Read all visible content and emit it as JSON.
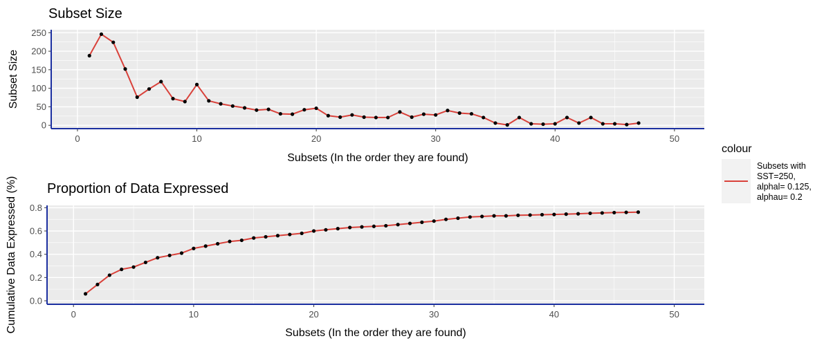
{
  "chart_data": [
    {
      "type": "line",
      "title": "Subset Size",
      "xlabel": "Subsets (In the order they are found)",
      "ylabel": "Subset Size",
      "xlim": [
        -2.2,
        52.5
      ],
      "ylim": [
        -9,
        258
      ],
      "x_ticks": [
        0,
        10,
        20,
        30,
        40,
        50
      ],
      "y_ticks": [
        0,
        50,
        100,
        150,
        200,
        250
      ],
      "grid": true,
      "series": [
        {
          "name": "Subsets with SST=250, alphal= 0.125, alphau= 0.2",
          "color": "#d9413a",
          "x": [
            1,
            2,
            3,
            4,
            5,
            6,
            7,
            8,
            9,
            10,
            11,
            12,
            13,
            14,
            15,
            16,
            17,
            18,
            19,
            20,
            21,
            22,
            23,
            24,
            25,
            26,
            27,
            28,
            29,
            30,
            31,
            32,
            33,
            34,
            35,
            36,
            37,
            38,
            39,
            40,
            41,
            42,
            43,
            44,
            45,
            46,
            47
          ],
          "values": [
            188,
            246,
            224,
            152,
            76,
            98,
            118,
            72,
            64,
            110,
            66,
            58,
            52,
            47,
            41,
            43,
            31,
            30,
            42,
            46,
            26,
            22,
            28,
            22,
            21,
            21,
            36,
            22,
            30,
            28,
            40,
            33,
            31,
            21,
            6,
            1,
            21,
            4,
            3,
            4,
            21,
            6,
            21,
            4,
            4,
            2,
            6
          ]
        }
      ]
    },
    {
      "type": "line",
      "title": "Proportion of Data Expressed",
      "xlabel": "Subsets (In the order they are found)",
      "ylabel": "Cumulative Data Expressed (%)",
      "xlim": [
        -2.2,
        52.5
      ],
      "ylim": [
        -0.03,
        0.82
      ],
      "x_ticks": [
        0,
        10,
        20,
        30,
        40,
        50
      ],
      "y_ticks": [
        0.0,
        0.2,
        0.4,
        0.6,
        0.8
      ],
      "y_tick_labels": [
        "0.0",
        "0.2",
        "0.4",
        "0.6",
        "0.8"
      ],
      "grid": true,
      "series": [
        {
          "name": "Subsets with SST=250, alphal= 0.125, alphau= 0.2",
          "color": "#d9413a",
          "x": [
            1,
            2,
            3,
            4,
            5,
            6,
            7,
            8,
            9,
            10,
            11,
            12,
            13,
            14,
            15,
            16,
            17,
            18,
            19,
            20,
            21,
            22,
            23,
            24,
            25,
            26,
            27,
            28,
            29,
            30,
            31,
            32,
            33,
            34,
            35,
            36,
            37,
            38,
            39,
            40,
            41,
            42,
            43,
            44,
            45,
            46,
            47
          ],
          "values": [
            0.06,
            0.14,
            0.22,
            0.27,
            0.29,
            0.33,
            0.37,
            0.39,
            0.41,
            0.45,
            0.47,
            0.49,
            0.51,
            0.52,
            0.54,
            0.55,
            0.56,
            0.57,
            0.58,
            0.6,
            0.61,
            0.62,
            0.63,
            0.635,
            0.64,
            0.645,
            0.655,
            0.665,
            0.675,
            0.685,
            0.7,
            0.71,
            0.72,
            0.725,
            0.73,
            0.73,
            0.735,
            0.737,
            0.74,
            0.742,
            0.745,
            0.748,
            0.752,
            0.755,
            0.758,
            0.76,
            0.762
          ]
        }
      ]
    }
  ],
  "legend": {
    "title": "colour",
    "placement": "right",
    "items": [
      {
        "lines": [
          "Subsets with",
          "SST=250,",
          "alphal= 0.125,",
          "alphau= 0.2"
        ],
        "color": "#d9413a"
      }
    ]
  },
  "colors": {
    "panel": "#ebebeb",
    "grid": "#ffffff",
    "axis": "#1b2fa0",
    "line": "#d9413a",
    "point": "#000000"
  }
}
